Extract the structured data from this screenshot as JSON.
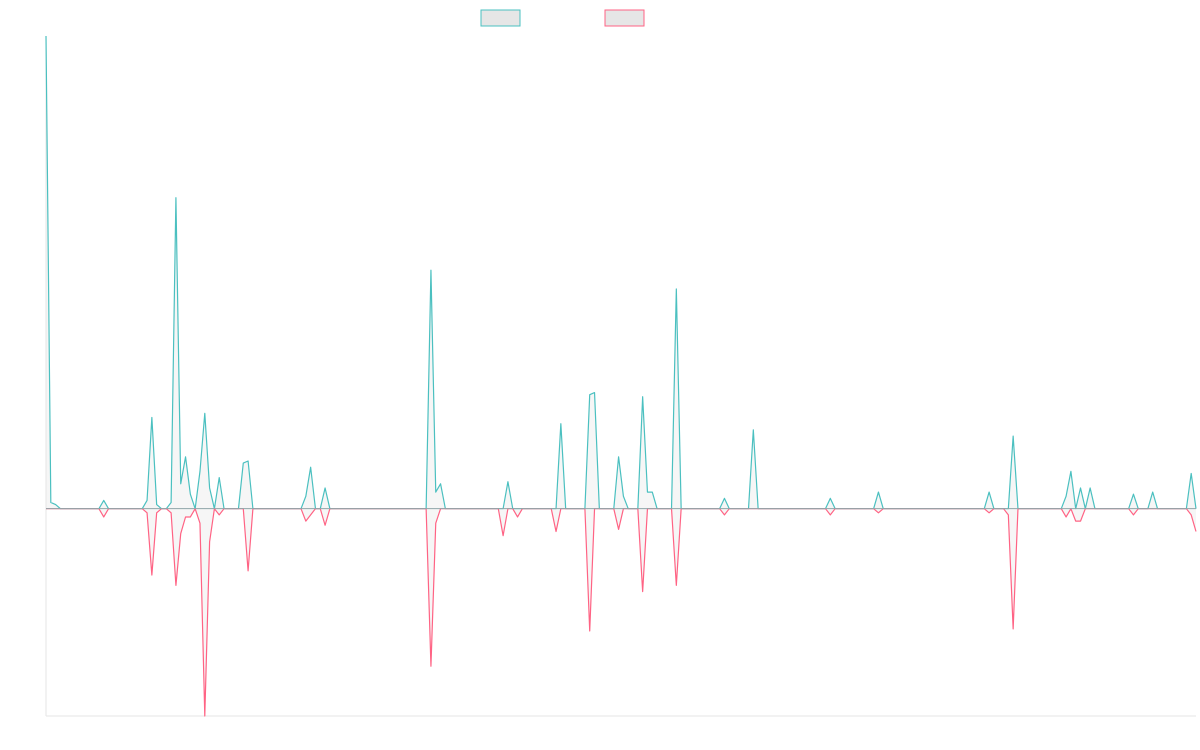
{
  "chart_data": {
    "type": "line",
    "title": "",
    "xlabel": "",
    "ylabel": "",
    "grid": false,
    "legend_position": "top-center",
    "ylim": [
      -1.0,
      2.28
    ],
    "series": [
      {
        "label": "",
        "color": "#4bc0c0",
        "fill": "#e6e6e6",
        "direction": "up",
        "values": [
          2.28,
          0.03,
          0.02,
          0,
          0,
          0,
          0,
          0,
          0,
          0,
          0,
          0,
          0.04,
          0,
          0,
          0,
          0,
          0,
          0,
          0,
          0,
          0.04,
          0.44,
          0.02,
          0,
          0,
          0.03,
          1.5,
          0.12,
          0.25,
          0.07,
          0,
          0.18,
          0.46,
          0.1,
          0,
          0.15,
          0,
          0,
          0,
          0,
          0.22,
          0.23,
          0,
          0,
          0,
          0,
          0,
          0,
          0,
          0,
          0,
          0,
          0,
          0.06,
          0.2,
          0,
          0,
          0.1,
          0,
          0,
          0,
          0,
          0,
          0,
          0,
          0,
          0,
          0,
          0,
          0,
          0,
          0,
          0,
          0,
          0,
          0,
          0,
          0,
          0,
          1.15,
          0.08,
          0.12,
          0,
          0,
          0,
          0,
          0,
          0,
          0,
          0,
          0,
          0,
          0,
          0,
          0,
          0.13,
          0,
          0,
          0,
          0,
          0,
          0,
          0,
          0,
          0,
          0,
          0.41,
          0,
          0,
          0,
          0,
          0,
          0.55,
          0.56,
          0,
          0,
          0,
          0,
          0.25,
          0.06,
          0,
          0,
          0,
          0.54,
          0.08,
          0.08,
          0,
          0,
          0,
          0,
          1.06,
          0,
          0,
          0,
          0,
          0,
          0,
          0,
          0,
          0,
          0.05,
          0,
          0,
          0,
          0,
          0,
          0.38,
          0,
          0,
          0,
          0,
          0,
          0,
          0,
          0,
          0,
          0,
          0,
          0,
          0,
          0,
          0,
          0.05,
          0,
          0,
          0,
          0,
          0,
          0,
          0,
          0,
          0,
          0.08,
          0,
          0,
          0,
          0,
          0,
          0,
          0,
          0,
          0,
          0,
          0,
          0,
          0,
          0,
          0,
          0,
          0,
          0,
          0,
          0,
          0,
          0,
          0.08,
          0,
          0,
          0,
          0,
          0.35,
          0,
          0,
          0,
          0,
          0,
          0,
          0,
          0,
          0,
          0,
          0.06,
          0.18,
          0,
          0.1,
          0,
          0.1,
          0,
          0,
          0,
          0,
          0,
          0,
          0,
          0,
          0.07,
          0,
          0,
          0,
          0.08,
          0,
          0,
          0,
          0,
          0,
          0,
          0,
          0.17,
          0
        ]
      },
      {
        "label": "",
        "color": "#ff6384",
        "fill": "#e6e6e6",
        "direction": "down",
        "values": [
          0,
          0,
          0,
          0,
          0,
          0,
          0,
          0,
          0,
          0,
          0,
          0,
          0.04,
          0,
          0,
          0,
          0,
          0,
          0,
          0,
          0,
          0.02,
          0.32,
          0.02,
          0,
          0,
          0.02,
          0.37,
          0.12,
          0.04,
          0.04,
          0,
          0.07,
          1.0,
          0.16,
          0,
          0.03,
          0,
          0,
          0,
          0,
          0,
          0.3,
          0,
          0,
          0,
          0,
          0,
          0,
          0,
          0,
          0,
          0,
          0,
          0.06,
          0.03,
          0,
          0,
          0.08,
          0,
          0,
          0,
          0,
          0,
          0,
          0,
          0,
          0,
          0,
          0,
          0,
          0,
          0,
          0,
          0,
          0,
          0,
          0,
          0,
          0,
          0.76,
          0.07,
          0,
          0,
          0,
          0,
          0,
          0,
          0,
          0,
          0,
          0,
          0,
          0,
          0,
          0.13,
          0,
          0,
          0.04,
          0,
          0,
          0,
          0,
          0,
          0,
          0,
          0.11,
          0,
          0,
          0,
          0,
          0,
          0,
          0.59,
          0,
          0,
          0,
          0,
          0,
          0.1,
          0,
          0,
          0,
          0,
          0.4,
          0,
          0,
          0,
          0,
          0,
          0,
          0.37,
          0,
          0,
          0,
          0,
          0,
          0,
          0,
          0,
          0,
          0.03,
          0,
          0,
          0,
          0,
          0,
          0,
          0,
          0,
          0,
          0,
          0,
          0,
          0,
          0,
          0,
          0,
          0,
          0,
          0,
          0,
          0,
          0.03,
          0,
          0,
          0,
          0,
          0,
          0,
          0,
          0,
          0,
          0.02,
          0,
          0,
          0,
          0,
          0,
          0,
          0,
          0,
          0,
          0,
          0,
          0,
          0,
          0,
          0,
          0,
          0,
          0,
          0,
          0,
          0,
          0,
          0.02,
          0,
          0,
          0,
          0.03,
          0.58,
          0,
          0,
          0,
          0,
          0,
          0,
          0,
          0,
          0,
          0,
          0.04,
          0,
          0.06,
          0.06,
          0,
          0,
          0,
          0,
          0,
          0,
          0,
          0,
          0,
          0,
          0.03,
          0,
          0,
          0,
          0,
          0,
          0,
          0,
          0,
          0,
          0,
          0,
          0.03,
          0.11
        ]
      }
    ]
  }
}
